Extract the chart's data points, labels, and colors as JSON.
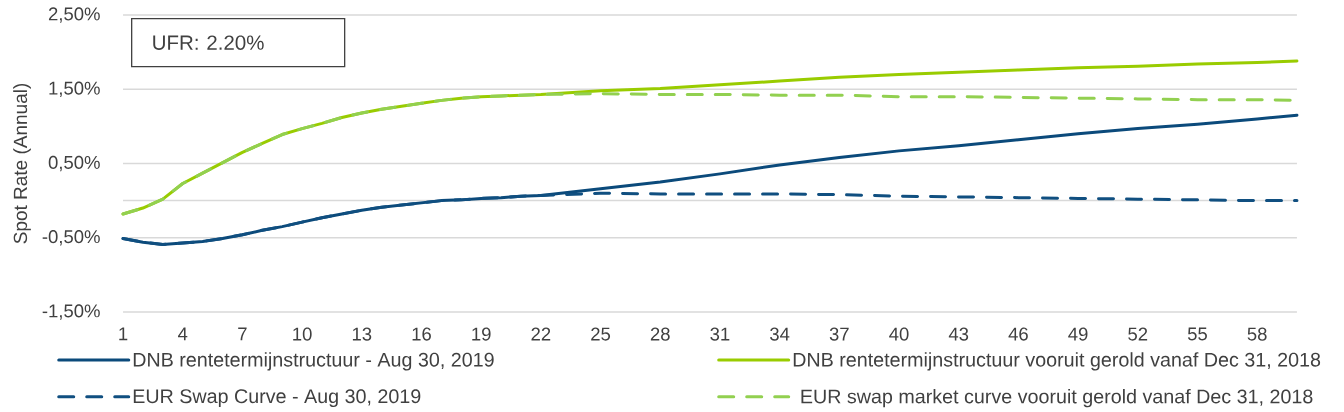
{
  "chart_data": {
    "type": "line",
    "ylabel": "Spot Rate (Annual)",
    "annotations": [
      "UFR: 2.20%"
    ],
    "x": [
      1,
      2,
      3,
      4,
      5,
      6,
      7,
      8,
      9,
      10,
      11,
      12,
      13,
      14,
      15,
      16,
      17,
      18,
      19,
      20,
      21,
      22,
      25,
      28,
      31,
      34,
      37,
      40,
      43,
      46,
      49,
      52,
      55,
      58,
      60
    ],
    "xlim": [
      1,
      60
    ],
    "xticks": [
      1,
      4,
      7,
      10,
      13,
      16,
      19,
      22,
      25,
      28,
      31,
      34,
      37,
      40,
      43,
      46,
      49,
      52,
      55,
      58
    ],
    "ylim": [
      -1.5,
      2.5
    ],
    "yticks": [
      {
        "value": -1.5,
        "label": "-1,50%"
      },
      {
        "value": -0.5,
        "label": "-0,50%"
      },
      {
        "value": 0.5,
        "label": "0,50%"
      },
      {
        "value": 1.5,
        "label": "1,50%"
      },
      {
        "value": 2.5,
        "label": "2,50%"
      }
    ],
    "grid": "y",
    "legend": "bottom",
    "ref_lines": [
      {
        "axis": "y",
        "value": 0,
        "color": "#d9d9d9"
      }
    ],
    "series": [
      {
        "name": "DNB rentetermijnstructuur - Aug 30, 2019",
        "color": "#0b4a7b",
        "line_style": "solid",
        "values": [
          -0.51,
          -0.56,
          -0.59,
          -0.57,
          -0.55,
          -0.51,
          -0.46,
          -0.4,
          -0.35,
          -0.29,
          -0.23,
          -0.18,
          -0.13,
          -0.09,
          -0.06,
          -0.03,
          0.0,
          0.01,
          0.03,
          0.04,
          0.06,
          0.07,
          0.16,
          0.25,
          0.36,
          0.48,
          0.58,
          0.67,
          0.74,
          0.82,
          0.9,
          0.97,
          1.03,
          1.1,
          1.15
        ]
      },
      {
        "name": "DNB rentetermijnstructuur vooruit gerold vanaf Dec 31, 2018",
        "color": "#99cc00",
        "line_style": "solid",
        "values": [
          -0.18,
          -0.1,
          0.02,
          0.23,
          0.37,
          0.51,
          0.65,
          0.77,
          0.89,
          0.97,
          1.04,
          1.12,
          1.18,
          1.23,
          1.27,
          1.31,
          1.35,
          1.38,
          1.4,
          1.41,
          1.42,
          1.43,
          1.48,
          1.51,
          1.56,
          1.61,
          1.66,
          1.7,
          1.73,
          1.76,
          1.79,
          1.81,
          1.84,
          1.86,
          1.88
        ]
      },
      {
        "name": "EUR Swap Curve - Aug 30, 2019",
        "color": "#104f80",
        "line_style": "dashed",
        "values": [
          -0.51,
          -0.56,
          -0.59,
          -0.57,
          -0.55,
          -0.51,
          -0.46,
          -0.4,
          -0.35,
          -0.29,
          -0.23,
          -0.18,
          -0.13,
          -0.09,
          -0.06,
          -0.03,
          0.0,
          0.01,
          0.03,
          0.04,
          0.06,
          0.07,
          0.1,
          0.09,
          0.09,
          0.09,
          0.08,
          0.06,
          0.05,
          0.04,
          0.03,
          0.02,
          0.01,
          0.0,
          0.0
        ]
      },
      {
        "name": "EUR swap market curve vooruit gerold vanaf Dec 31, 2018",
        "color": "#92d050",
        "line_style": "dashed",
        "values": [
          -0.18,
          -0.1,
          0.02,
          0.23,
          0.37,
          0.51,
          0.65,
          0.77,
          0.89,
          0.97,
          1.04,
          1.12,
          1.18,
          1.23,
          1.27,
          1.31,
          1.35,
          1.38,
          1.4,
          1.41,
          1.42,
          1.43,
          1.44,
          1.43,
          1.43,
          1.42,
          1.42,
          1.4,
          1.4,
          1.39,
          1.38,
          1.37,
          1.36,
          1.36,
          1.35
        ]
      }
    ]
  }
}
